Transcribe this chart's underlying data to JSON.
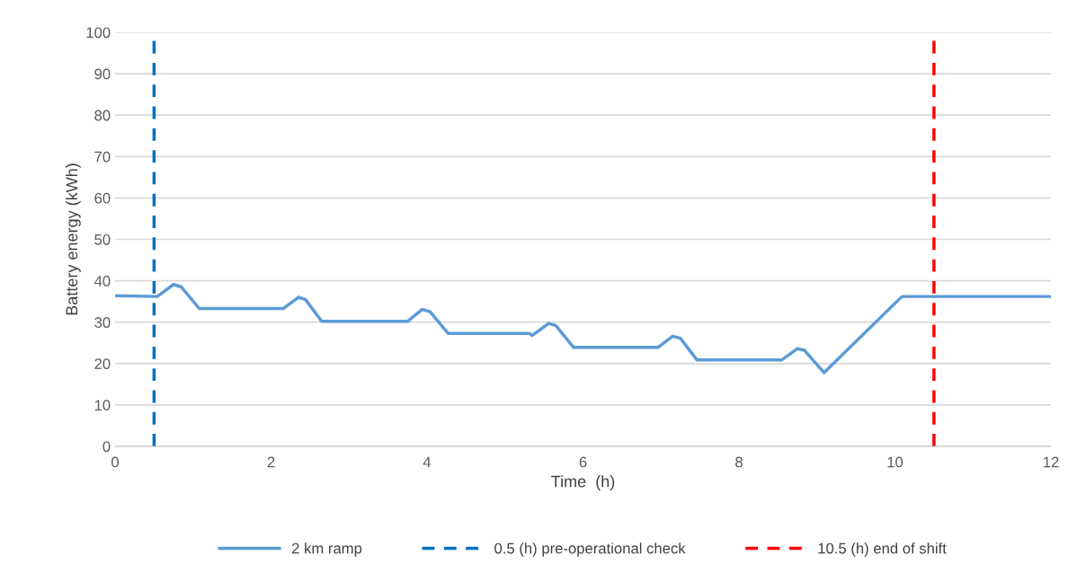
{
  "chart_data": {
    "type": "line",
    "xlabel": "Time  (h)",
    "ylabel": "Battery energy (kWh)",
    "xlim": [
      0,
      12
    ],
    "xticks": [
      0,
      2,
      4,
      6,
      8,
      10,
      12
    ],
    "ylim": [
      0,
      100
    ],
    "yticks": [
      0,
      10,
      20,
      30,
      40,
      50,
      60,
      70,
      80,
      90,
      100
    ],
    "grid": "y",
    "legend": "bottom",
    "series": [
      {
        "name": "2 km ramp",
        "color": "#5b9bd5",
        "line_style": "solid",
        "x": [
          0,
          0.54,
          0.75,
          0.85,
          1.08,
          2.16,
          2.35,
          2.44,
          2.65,
          3.75,
          3.94,
          4.04,
          4.27,
          5.31,
          5.35,
          5.56,
          5.65,
          5.88,
          6.96,
          7.15,
          7.25,
          7.46,
          8.55,
          8.75,
          8.84,
          9.09,
          10.09,
          12
        ],
        "values": [
          36.4,
          36.2,
          39.1,
          38.5,
          33.3,
          33.3,
          36.0,
          35.5,
          30.2,
          30.2,
          33.1,
          32.5,
          27.3,
          27.3,
          26.8,
          29.7,
          29.2,
          23.9,
          23.9,
          26.6,
          26.1,
          20.9,
          20.9,
          23.6,
          23.2,
          17.8,
          36.2,
          36.2
        ]
      }
    ],
    "ref_lines": [
      {
        "axis": "x",
        "value": 0.5,
        "label": "0.5 (h) pre-operational check",
        "color": "#0070c0",
        "line_style": "dashed"
      },
      {
        "axis": "x",
        "value": 10.5,
        "label": "10.5 (h) end of shift",
        "color": "#ff0000",
        "line_style": "dashed"
      }
    ]
  }
}
